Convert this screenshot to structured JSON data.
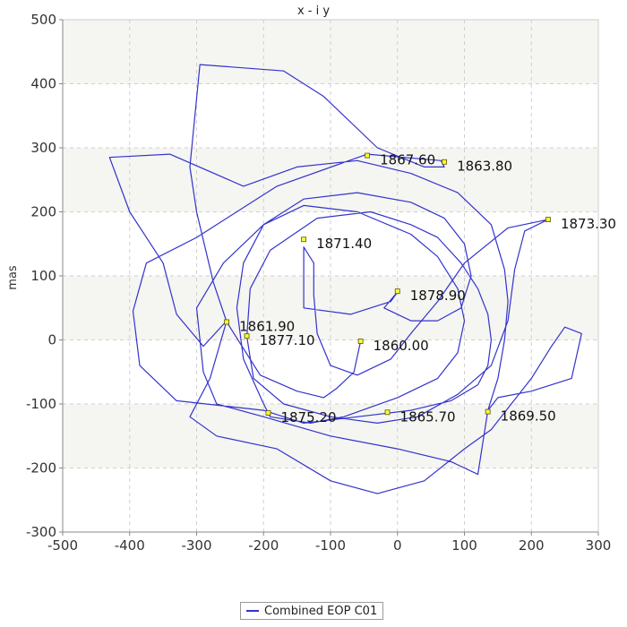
{
  "chart_data": {
    "type": "line",
    "title": "x - i y",
    "xlabel": "",
    "ylabel": "mas",
    "xlim": [
      -500,
      300
    ],
    "ylim": [
      -300,
      500
    ],
    "x_ticks": [
      -500,
      -400,
      -300,
      -200,
      -100,
      0,
      100,
      200,
      300
    ],
    "y_ticks": [
      -300,
      -200,
      -100,
      0,
      100,
      200,
      300,
      400,
      500
    ],
    "grid": true,
    "background_bands": true,
    "legend_position": "bottom-center",
    "series": [
      {
        "name": "Combined EOP C01",
        "color": "#3333cc",
        "points": [
          [
            -55,
            -2
          ],
          [
            -65,
            -50
          ],
          [
            -90,
            -75
          ],
          [
            -110,
            -90
          ],
          [
            -150,
            -80
          ],
          [
            -205,
            -55
          ],
          [
            -255,
            28
          ],
          [
            -275,
            90
          ],
          [
            -300,
            200
          ],
          [
            -310,
            270
          ],
          [
            -295,
            430
          ],
          [
            -170,
            420
          ],
          [
            -110,
            380
          ],
          [
            -30,
            300
          ],
          [
            40,
            270
          ],
          [
            70,
            270
          ],
          [
            65,
            280
          ],
          [
            -45,
            290
          ],
          [
            -180,
            240
          ],
          [
            -300,
            160
          ],
          [
            -375,
            120
          ],
          [
            -395,
            45
          ],
          [
            -385,
            -40
          ],
          [
            -330,
            -95
          ],
          [
            -200,
            -110
          ],
          [
            -140,
            -130
          ],
          [
            -60,
            -120
          ],
          [
            20,
            -110
          ],
          [
            80,
            -95
          ],
          [
            120,
            -70
          ],
          [
            135,
            -40
          ],
          [
            140,
            0
          ],
          [
            135,
            40
          ],
          [
            120,
            80
          ],
          [
            95,
            120
          ],
          [
            60,
            160
          ],
          [
            20,
            180
          ],
          [
            -40,
            200
          ],
          [
            -120,
            190
          ],
          [
            -190,
            140
          ],
          [
            -220,
            80
          ],
          [
            -225,
            5
          ],
          [
            -215,
            -60
          ],
          [
            -170,
            -100
          ],
          [
            -100,
            -120
          ],
          [
            -30,
            -130
          ],
          [
            30,
            -120
          ],
          [
            90,
            -85
          ],
          [
            140,
            -40
          ],
          [
            165,
            30
          ],
          [
            175,
            110
          ],
          [
            190,
            170
          ],
          [
            225,
            188
          ],
          [
            165,
            175
          ],
          [
            100,
            120
          ],
          [
            60,
            60
          ],
          [
            20,
            10
          ],
          [
            -10,
            -30
          ],
          [
            -60,
            -55
          ],
          [
            -100,
            -40
          ],
          [
            -120,
            10
          ],
          [
            -125,
            70
          ],
          [
            -125,
            120
          ],
          [
            -140,
            145
          ],
          [
            -140,
            50
          ],
          [
            -70,
            40
          ],
          [
            -10,
            60
          ],
          [
            0,
            75
          ],
          [
            -20,
            50
          ],
          [
            20,
            30
          ],
          [
            60,
            30
          ],
          [
            95,
            50
          ],
          [
            110,
            100
          ],
          [
            100,
            150
          ],
          [
            70,
            190
          ],
          [
            20,
            215
          ],
          [
            -60,
            230
          ],
          [
            -140,
            220
          ],
          [
            -200,
            180
          ],
          [
            -230,
            120
          ],
          [
            -240,
            50
          ],
          [
            -230,
            -30
          ],
          [
            -200,
            -100
          ],
          [
            -190,
            -120
          ],
          [
            -130,
            -130
          ],
          [
            -80,
            -120
          ],
          [
            -40,
            -105
          ],
          [
            0,
            -90
          ],
          [
            60,
            -60
          ],
          [
            90,
            -20
          ],
          [
            100,
            30
          ],
          [
            90,
            80
          ],
          [
            60,
            130
          ],
          [
            20,
            165
          ],
          [
            -60,
            200
          ],
          [
            -140,
            210
          ],
          [
            -200,
            180
          ],
          [
            -260,
            120
          ],
          [
            -300,
            50
          ],
          [
            -290,
            -50
          ],
          [
            -270,
            -100
          ],
          [
            -200,
            -120
          ],
          [
            -100,
            -150
          ],
          [
            0,
            -170
          ],
          [
            80,
            -190
          ],
          [
            120,
            -210
          ],
          [
            135,
            -110
          ],
          [
            150,
            -60
          ],
          [
            160,
            0
          ],
          [
            165,
            60
          ],
          [
            160,
            110
          ],
          [
            140,
            180
          ],
          [
            90,
            230
          ],
          [
            20,
            260
          ],
          [
            -60,
            280
          ],
          [
            -150,
            270
          ],
          [
            -230,
            240
          ],
          [
            -340,
            290
          ],
          [
            -430,
            285
          ],
          [
            -400,
            200
          ],
          [
            -350,
            120
          ],
          [
            -330,
            40
          ],
          [
            -290,
            -10
          ],
          [
            -255,
            30
          ],
          [
            -280,
            -60
          ],
          [
            -310,
            -120
          ],
          [
            -270,
            -150
          ],
          [
            -180,
            -170
          ],
          [
            -100,
            -220
          ],
          [
            -30,
            -240
          ],
          [
            40,
            -220
          ],
          [
            100,
            -170
          ],
          [
            140,
            -140
          ],
          [
            170,
            -100
          ],
          [
            200,
            -60
          ],
          [
            230,
            -10
          ],
          [
            250,
            20
          ],
          [
            275,
            10
          ],
          [
            260,
            -60
          ],
          [
            200,
            -80
          ],
          [
            150,
            -90
          ],
          [
            135,
            -110
          ]
        ]
      }
    ],
    "annotations": [
      {
        "label": "1860.00",
        "x": -55,
        "y": -2
      },
      {
        "label": "1861.90",
        "x": -255,
        "y": 28
      },
      {
        "label": "1863.80",
        "x": 70,
        "y": 278
      },
      {
        "label": "1865.70",
        "x": -15,
        "y": -113
      },
      {
        "label": "1867.60",
        "x": -45,
        "y": 288
      },
      {
        "label": "1869.50",
        "x": 135,
        "y": -112
      },
      {
        "label": "1871.40",
        "x": -140,
        "y": 157
      },
      {
        "label": "1873.30",
        "x": 225,
        "y": 188
      },
      {
        "label": "1875.20",
        "x": -193,
        "y": -114
      },
      {
        "label": "1877.10",
        "x": -225,
        "y": 6
      },
      {
        "label": "1878.90",
        "x": 0,
        "y": 76
      }
    ]
  }
}
